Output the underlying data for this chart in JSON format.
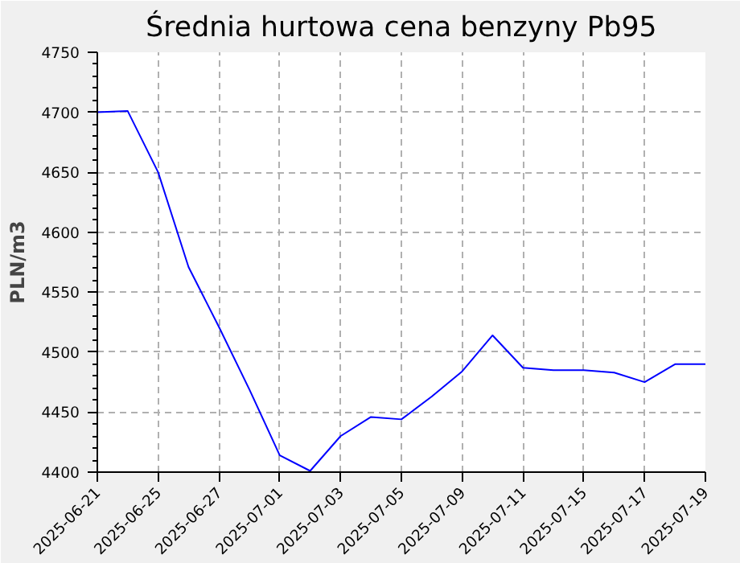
{
  "chart_data": {
    "type": "line",
    "title": "Średnia hurtowa cena benzyny Pb95",
    "ylabel": "PLN/m3",
    "categories": [
      "2025-06-21",
      null,
      "2025-06-25",
      null,
      "2025-06-27",
      null,
      "2025-07-01",
      null,
      "2025-07-03",
      null,
      "2025-07-05",
      null,
      "2025-07-09",
      null,
      "2025-07-11",
      null,
      "2025-07-15",
      null,
      "2025-07-17",
      null,
      "2025-07-19"
    ],
    "series": [
      {
        "color": "#0000ff",
        "values": [
          4700,
          4701,
          4650,
          4571,
          4521,
          4469,
          4414,
          4401,
          4430,
          4446,
          4444,
          4463,
          4484,
          4514,
          4487,
          4485,
          4485,
          4483,
          4475,
          4490,
          4490
        ]
      }
    ],
    "ylim": [
      4400,
      4750
    ],
    "yticks": [
      4400,
      4450,
      4500,
      4550,
      4600,
      4650,
      4700,
      4750
    ],
    "grid": true,
    "marker": "none",
    "line_style": "solid"
  }
}
